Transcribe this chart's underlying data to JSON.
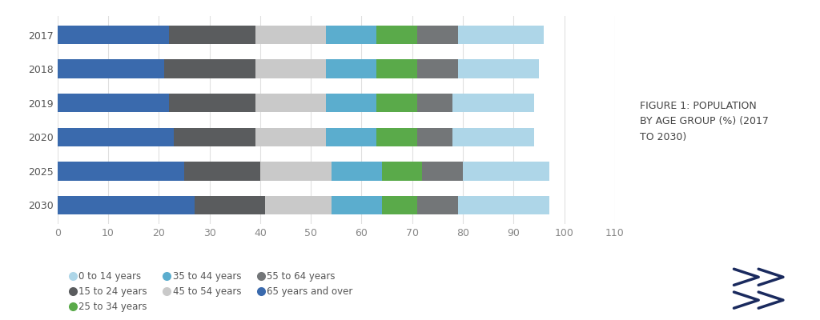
{
  "years": [
    "2017",
    "2018",
    "2019",
    "2020",
    "2025",
    "2030"
  ],
  "segments": [
    {
      "label": "65 years and over",
      "color": "#3a6aad",
      "values": [
        22,
        21,
        22,
        23,
        25,
        27
      ]
    },
    {
      "label": "15 to 24 years",
      "color": "#5a5c5e",
      "values": [
        17,
        18,
        17,
        16,
        15,
        14
      ]
    },
    {
      "label": "45 to 54 years",
      "color": "#c9c9c9",
      "values": [
        14,
        14,
        14,
        14,
        14,
        13
      ]
    },
    {
      "label": "35 to 44 years",
      "color": "#5badce",
      "values": [
        10,
        10,
        10,
        10,
        10,
        10
      ]
    },
    {
      "label": "25 to 34 years",
      "color": "#5aaa4a",
      "values": [
        8,
        8,
        8,
        8,
        8,
        7
      ]
    },
    {
      "label": "55 to 64 years",
      "color": "#737678",
      "values": [
        8,
        8,
        7,
        7,
        8,
        8
      ]
    },
    {
      "label": "0 to 14 years",
      "color": "#aed6e8",
      "values": [
        17,
        16,
        16,
        16,
        17,
        18
      ]
    }
  ],
  "xlim": [
    0,
    110
  ],
  "xticks": [
    0,
    10,
    20,
    30,
    40,
    50,
    60,
    70,
    80,
    90,
    100,
    110
  ],
  "figure_label": "FIGURE 1: POPULATION\nBY AGE GROUP (%) (2017\nTO 2030)",
  "legend_order": [
    "0 to 14 years",
    "15 to 24 years",
    "25 to 34 years",
    "35 to 44 years",
    "45 to 54 years",
    "55 to 64 years",
    "65 years and over"
  ],
  "background_color": "#ffffff",
  "bar_height": 0.55,
  "title_fontsize": 9,
  "legend_fontsize": 8.5,
  "tick_fontsize": 9,
  "label_fontsize": 9
}
